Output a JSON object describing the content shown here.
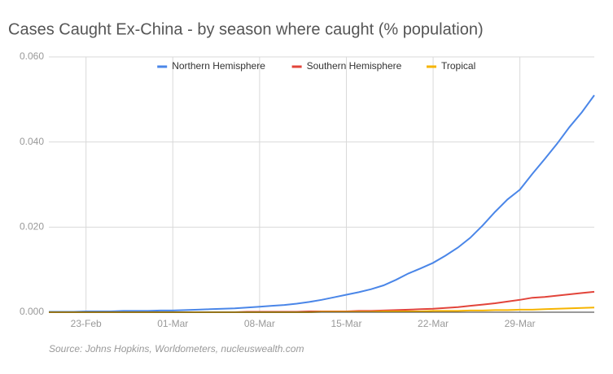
{
  "chart_data": {
    "type": "line",
    "title": "Cases Caught Ex-China - by season where caught (% population)",
    "source": "Source: Johns Hopkins, Worldometers, nucleuswealth.com",
    "categories": [
      null,
      null,
      null,
      "23-Feb",
      null,
      null,
      null,
      null,
      null,
      null,
      "01-Mar",
      null,
      null,
      null,
      null,
      null,
      null,
      "08-Mar",
      null,
      null,
      null,
      null,
      null,
      null,
      "15-Mar",
      null,
      null,
      null,
      null,
      null,
      null,
      "22-Mar",
      null,
      null,
      null,
      null,
      null,
      null,
      "29-Mar",
      null,
      null,
      null,
      null,
      null,
      null
    ],
    "series": [
      {
        "name": "Northern Hemisphere",
        "color": "#4a86e8",
        "values": [
          0.0001,
          0.0001,
          0.0001,
          0.0002,
          0.0002,
          0.0002,
          0.0003,
          0.0003,
          0.0003,
          0.0004,
          0.0004,
          0.0005,
          0.0006,
          0.0007,
          0.0008,
          0.0009,
          0.0011,
          0.0013,
          0.0015,
          0.0017,
          0.002,
          0.0024,
          0.0029,
          0.0035,
          0.0041,
          0.0047,
          0.0054,
          0.0063,
          0.0076,
          0.0091,
          0.0103,
          0.0116,
          0.0133,
          0.0152,
          0.0175,
          0.0204,
          0.0236,
          0.0265,
          0.0288,
          0.0325,
          0.036,
          0.0396,
          0.0435,
          0.047,
          0.051
        ]
      },
      {
        "name": "Southern Hemisphere",
        "color": "#e2443a",
        "values": [
          0,
          0,
          0,
          0,
          0,
          0,
          0,
          0,
          0,
          0,
          0,
          0,
          0,
          0,
          0,
          0,
          0.0001,
          0.0001,
          0.0001,
          0.0001,
          0.0001,
          0.0002,
          0.0002,
          0.0002,
          0.0002,
          0.0003,
          0.0003,
          0.0004,
          0.0005,
          0.0006,
          0.0007,
          0.0008,
          0.001,
          0.0012,
          0.0015,
          0.0018,
          0.0021,
          0.0025,
          0.0029,
          0.0034,
          0.0036,
          0.0039,
          0.0042,
          0.0045,
          0.0048
        ]
      },
      {
        "name": "Tropical",
        "color": "#f6b400",
        "values": [
          0,
          0,
          0,
          0,
          0,
          0,
          0,
          0,
          0,
          0,
          0,
          0,
          0,
          0,
          0,
          0,
          0,
          0,
          0,
          0,
          0,
          0,
          0.0001,
          0.0001,
          0.0001,
          0.0001,
          0.0001,
          0.0002,
          0.0002,
          0.0002,
          0.0002,
          0.0003,
          0.0003,
          0.0003,
          0.0004,
          0.0004,
          0.0005,
          0.0005,
          0.0006,
          0.0006,
          0.0007,
          0.0008,
          0.0009,
          0.001,
          0.0011
        ]
      }
    ],
    "ylim": [
      0,
      0.06
    ],
    "yticks": [
      {
        "value": 0,
        "label": "0.000"
      },
      {
        "value": 0.02,
        "label": "0.020"
      },
      {
        "value": 0.04,
        "label": "0.040"
      },
      {
        "value": 0.06,
        "label": "0.060"
      }
    ],
    "grid": true,
    "legend": "top"
  }
}
